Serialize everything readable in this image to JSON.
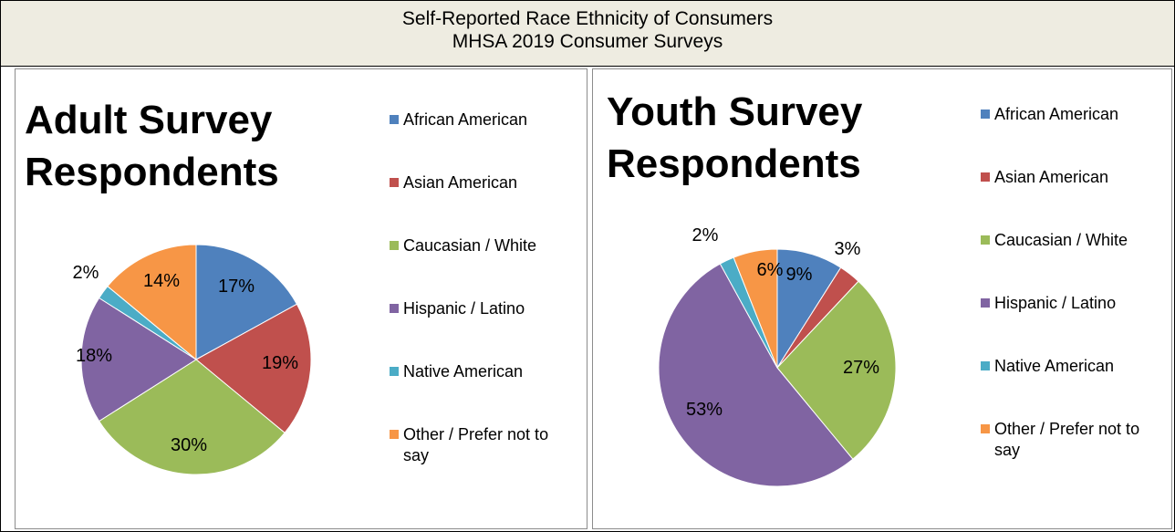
{
  "header": {
    "line1": "Self-Reported Race Ethnicity of Consumers",
    "line2": "MHSA 2019 Consumer Surveys"
  },
  "chart_data": [
    {
      "type": "pie",
      "title": [
        "Adult Survey",
        "Respondents"
      ],
      "categories": [
        "African American",
        "Asian American",
        "Caucasian / White",
        "Hispanic / Latino",
        "Native American",
        "Other / Prefer not to say"
      ],
      "values": [
        17,
        19,
        30,
        18,
        2,
        14
      ],
      "labels": [
        "17%",
        "19%",
        "30%",
        "18%",
        "2%",
        "14%"
      ],
      "colors": [
        "#4f81bd",
        "#c0504d",
        "#9bbb59",
        "#8064a2",
        "#4bacc6",
        "#f79646"
      ],
      "legend_position": "right"
    },
    {
      "type": "pie",
      "title": [
        "Youth Survey",
        "Respondents"
      ],
      "categories": [
        "African American",
        "Asian American",
        "Caucasian / White",
        "Hispanic / Latino",
        "Native American",
        "Other / Prefer not to say"
      ],
      "values": [
        9,
        3,
        27,
        53,
        2,
        6
      ],
      "labels": [
        "9%",
        "3%",
        "27%",
        "53%",
        "2%",
        "6%"
      ],
      "colors": [
        "#4f81bd",
        "#c0504d",
        "#9bbb59",
        "#8064a2",
        "#4bacc6",
        "#f79646"
      ],
      "legend_position": "right"
    }
  ]
}
